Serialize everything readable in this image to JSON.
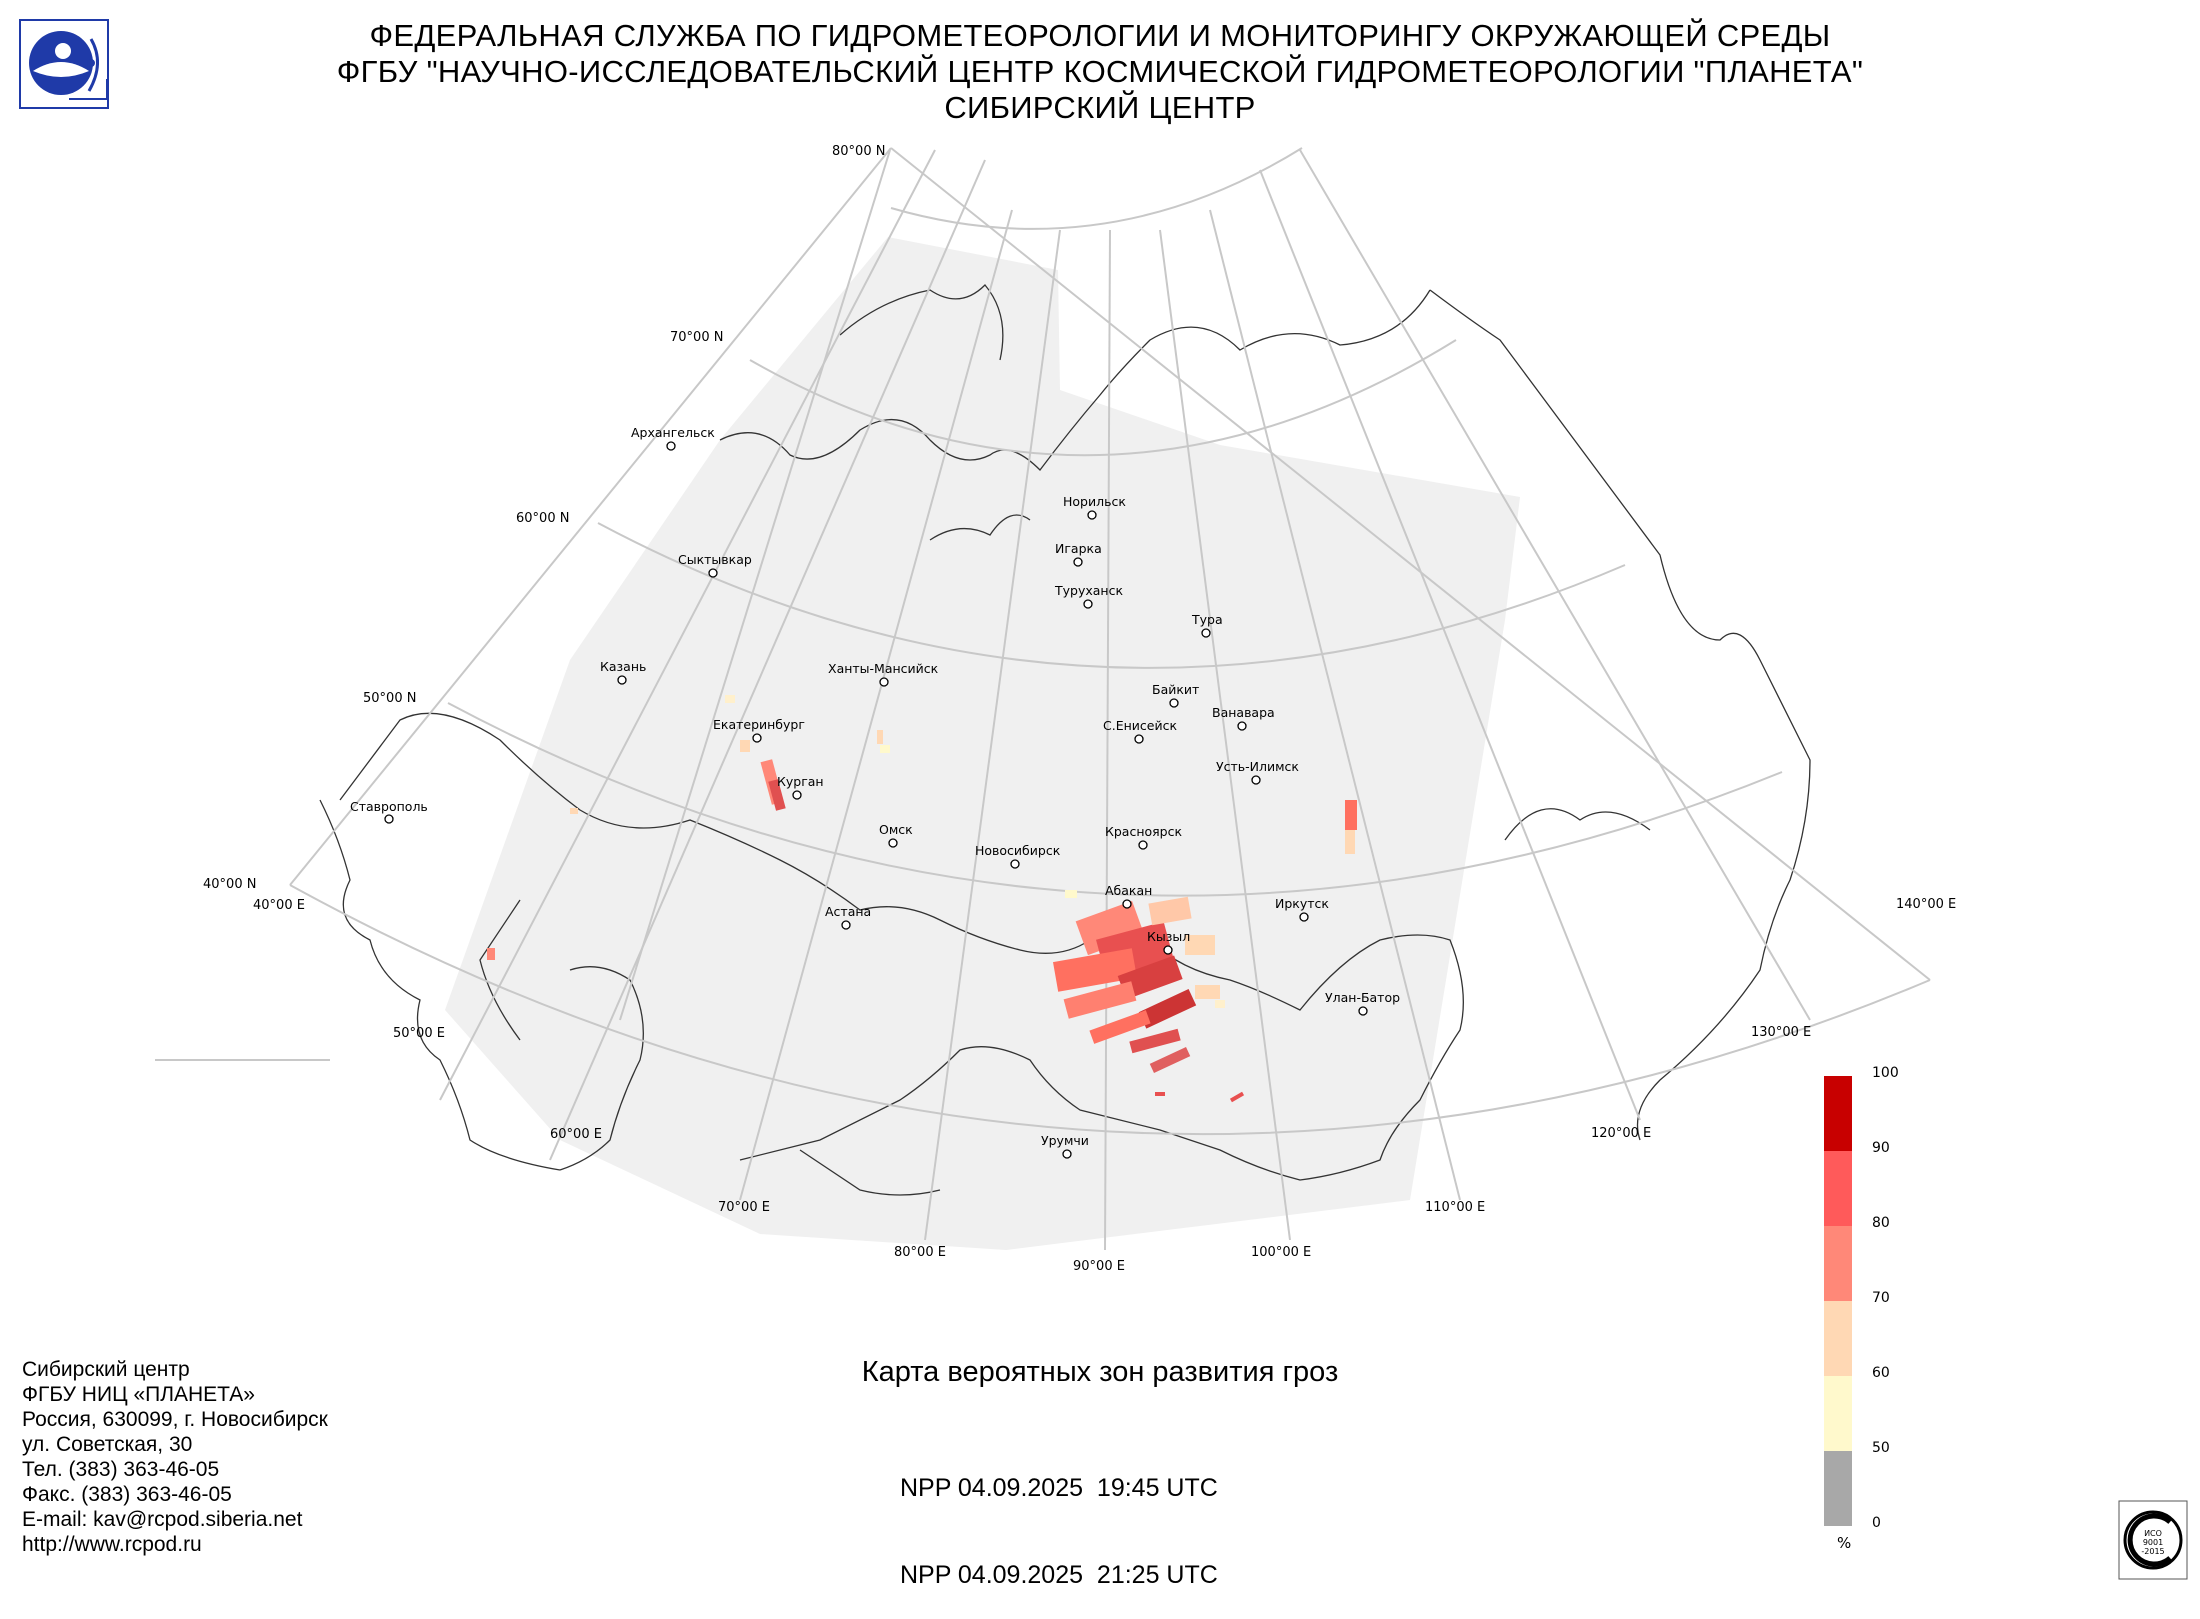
{
  "header": {
    "line1": "ФЕДЕРАЛЬНАЯ СЛУЖБА ПО ГИДРОМЕТЕОРОЛОГИИ И МОНИТОРИНГУ ОКРУЖАЮЩЕЙ СРЕДЫ",
    "line2": "ФГБУ \"НАУЧНО-ИССЛЕДОВАТЕЛЬСКИЙ ЦЕНТР КОСМИЧЕСКОЙ ГИДРОМЕТЕОРОЛОГИИ \"ПЛАНЕТА\"",
    "line3": "СИБИРСКИЙ ЦЕНТР"
  },
  "map": {
    "lat_labels": [
      "80°00 N",
      "70°00 N",
      "60°00 N",
      "50°00 N",
      "40°00 N"
    ],
    "lon_labels": [
      "40°00 E",
      "50°00 E",
      "60°00 E",
      "70°00 E",
      "80°00 E",
      "90°00 E",
      "100°00 E",
      "110°00 E",
      "120°00 E",
      "130°00 E",
      "140°00 E"
    ],
    "cities": [
      "Архангельск",
      "Сыктывкар",
      "Казань",
      "Ханты-Мансийск",
      "Екатеринбург",
      "Курган",
      "Ставрополь",
      "Омск",
      "Новосибирск",
      "Астана",
      "Норильск",
      "Игарка",
      "Туруханск",
      "Тура",
      "Байкит",
      "Ванавара",
      "С.Енисейск",
      "Усть-Илимск",
      "Красноярск",
      "Абакан",
      "Кызыл",
      "Иркутск",
      "Улан-Батор",
      "Урумчи"
    ]
  },
  "legend": {
    "ticks": [
      "100",
      "90",
      "80",
      "70",
      "60",
      "50",
      "0"
    ],
    "unit": "%",
    "colors": [
      "#c80000",
      "#ff5a5a",
      "#ff8878",
      "#ffd8b4",
      "#fff9cc",
      "#a8a8a8"
    ]
  },
  "title": "Карта вероятных зон развития гроз",
  "passes": [
    "NPP 04.09.2025  19:45 UTC",
    "NPP 04.09.2025  21:25 UTC"
  ],
  "address": [
    "Сибирский центр",
    "ФГБУ НИЦ «ПЛАНЕТА»",
    "Россия, 630099, г. Новосибирск",
    "ул. Советская, 30",
    "Тел. (383) 363-46-05",
    "Факс. (383) 363-46-05",
    "E-mail: kav@rcpod.siberia.net",
    "http://www.rcpod.ru"
  ],
  "iso_badge": [
    "ИСО",
    "9001",
    "-2015"
  ]
}
